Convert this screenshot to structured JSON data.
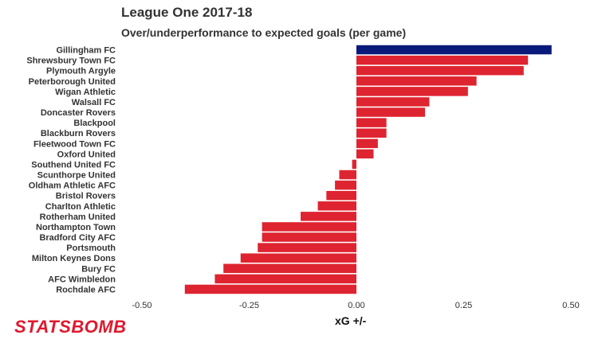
{
  "chart_data": {
    "type": "bar",
    "orientation": "horizontal",
    "title": "League One 2017-18",
    "subtitle": "Over/underperformance to expected goals (per game)",
    "xlabel": "xG +/-",
    "ylabel": "",
    "xlim": [
      -0.5,
      0.5
    ],
    "xticks": [
      "-0.50",
      "-0.25",
      "0.00",
      "0.25",
      "0.50"
    ],
    "xtick_values": [
      -0.5,
      -0.25,
      0,
      0.25,
      0.5
    ],
    "grid": false,
    "legend": "none",
    "categories": [
      "Gillingham FC",
      "Shrewsbury Town FC",
      "Plymouth Argyle",
      "Peterborough United",
      "Wigan Athletic",
      "Walsall FC",
      "Doncaster Rovers",
      "Blackpool",
      "Blackburn Rovers",
      "Fleetwood Town FC",
      "Oxford United",
      "Southend United FC",
      "Scunthorpe United",
      "Oldham Athletic AFC",
      "Bristol Rovers",
      "Charlton Athletic",
      "Rotherham United",
      "Northampton Town",
      "Bradford City AFC",
      "Portsmouth",
      "Milton Keynes Dons",
      "Bury FC",
      "AFC Wimbledon",
      "Rochdale AFC"
    ],
    "values": [
      0.455,
      0.4,
      0.39,
      0.28,
      0.26,
      0.17,
      0.16,
      0.07,
      0.07,
      0.05,
      0.04,
      -0.01,
      -0.04,
      -0.05,
      -0.07,
      -0.09,
      -0.13,
      -0.22,
      -0.22,
      -0.23,
      -0.27,
      -0.31,
      -0.33,
      -0.4
    ],
    "highlight_index": 0,
    "colors": {
      "highlight": "#0a1a7a",
      "default": "#de2430"
    }
  },
  "brand": {
    "logo_text": "STATSBOMB",
    "color": "#e0182d"
  }
}
